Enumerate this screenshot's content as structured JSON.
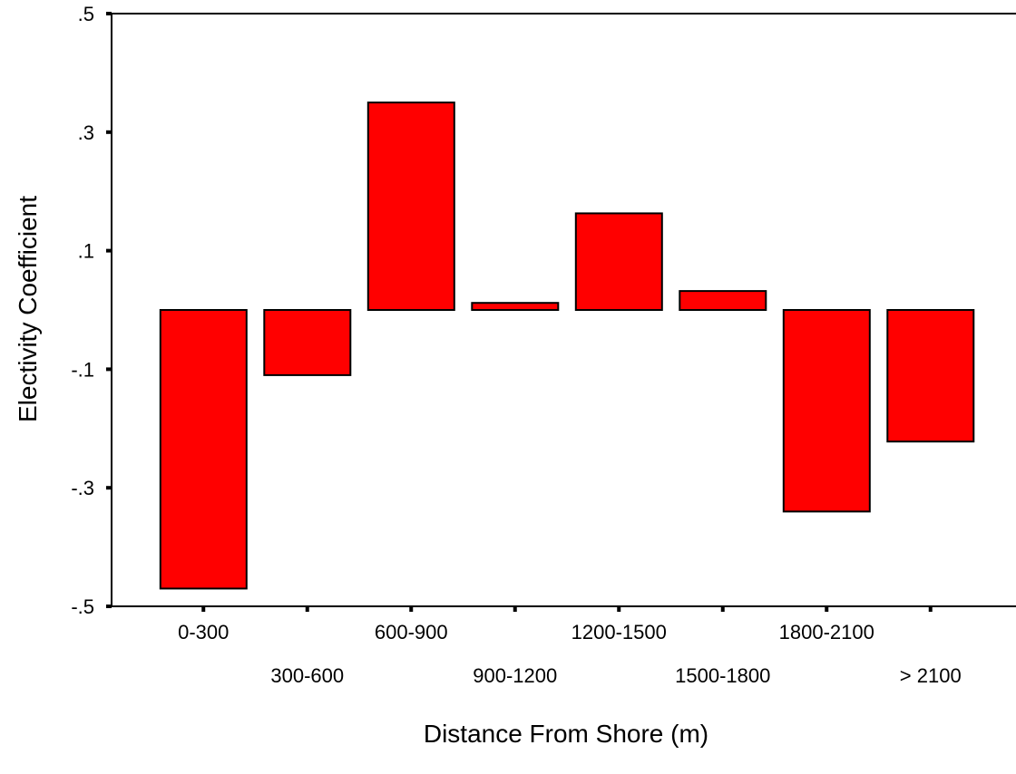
{
  "chart_data": {
    "type": "bar",
    "title": "",
    "xlabel": "Distance From Shore (m)",
    "ylabel": "Electivity Coefficient",
    "ylim": [
      -0.5,
      0.5
    ],
    "yticks": [
      0.5,
      0.3,
      0.1,
      -0.1,
      -0.3,
      -0.5
    ],
    "ytick_labels": [
      ".5",
      ".3",
      ".1",
      "-.1",
      "-.3",
      "-.5"
    ],
    "categories": [
      "0-300",
      "300-600",
      "600-900",
      "900-1200",
      "1200-1500",
      "1500-1800",
      "1800-2100",
      "> 2100"
    ],
    "values": [
      -0.47,
      -0.11,
      0.35,
      0.012,
      0.163,
      0.032,
      -0.34,
      -0.222
    ],
    "bar_color": "#ff0000",
    "grid": false,
    "legend": "none"
  }
}
